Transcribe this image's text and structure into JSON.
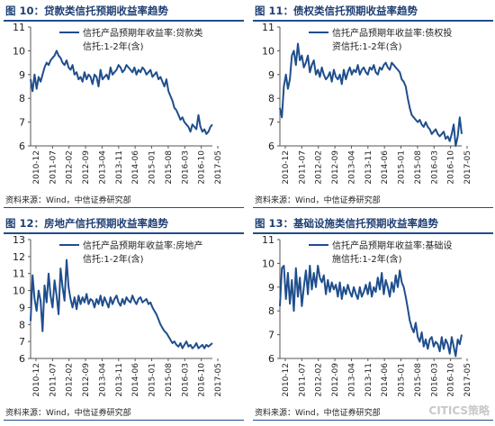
{
  "panels": [
    {
      "title": "图 10：贷款类信托预期收益率趋势",
      "source": "资料来源：Wind，中信证券研究部",
      "watermark": ""
    },
    {
      "title": "图 11：债权类信托预期收益率趋势",
      "source": "资料来源：Wind，中信证券研究部",
      "watermark": ""
    },
    {
      "title": "图 12：房地产信托预期收益率趋势",
      "source": "资料来源：Wind，中信证券研究部",
      "watermark": ""
    },
    {
      "title": "图 13：基础设施类信托预期收益率趋势",
      "source": "资料来源：Wind，中信证券研究部",
      "watermark": "CITICS策略"
    }
  ],
  "colors": {
    "line": "#1f4e8c",
    "header_rule": "#1f4e8c",
    "title": "#1f3f73"
  },
  "chart_data": [
    {
      "type": "line",
      "legend_lines": [
        "信托产品预期年收益率:贷款类",
        "信托:1-2年(含)"
      ],
      "legend_position": "top-right",
      "x_ticks": [
        "2010-12",
        "2011-07",
        "2012-02",
        "2012-09",
        "2013-04",
        "2013-11",
        "2014-06",
        "2015-01",
        "2015-08",
        "2016-03",
        "2016-10",
        "2017-05"
      ],
      "ylim": [
        6,
        11
      ],
      "yticks": [
        6,
        7,
        8,
        9,
        10,
        11
      ],
      "series": [
        {
          "values": [
            8.8,
            8.3,
            9.0,
            8.4,
            8.9,
            8.7,
            9.0,
            9.3,
            9.5,
            9.4,
            9.6,
            9.7,
            9.8,
            10.0,
            9.8,
            9.7,
            9.5,
            9.4,
            9.6,
            9.3,
            9.2,
            9.4,
            9.0,
            9.1,
            8.8,
            8.9,
            8.7,
            9.1,
            8.8,
            9.0,
            8.9,
            8.6,
            9.0,
            8.9,
            8.5,
            9.2,
            8.8,
            8.9,
            9.0,
            8.8,
            9.3,
            9.0,
            9.1,
            9.2,
            9.4,
            9.3,
            9.1,
            9.2,
            9.4,
            9.3,
            9.2,
            9.1,
            9.3,
            9.0,
            9.2,
            9.1,
            9.3,
            9.2,
            9.0,
            9.1,
            9.2,
            8.9,
            9.0,
            9.1,
            8.8,
            8.9,
            8.7,
            8.5,
            8.8,
            8.3,
            8.1,
            7.9,
            7.6,
            7.5,
            7.3,
            7.1,
            7.2,
            7.0,
            6.9,
            6.8,
            6.6,
            6.9,
            6.8,
            6.7,
            7.3,
            6.8,
            6.6,
            6.7,
            6.5,
            6.6,
            6.8,
            6.9
          ]
        }
      ]
    },
    {
      "type": "line",
      "legend_lines": [
        "信托产品预期年收益率:债权投",
        "资信托:1-2年(含)"
      ],
      "legend_position": "top-right",
      "x_ticks": [
        "2010-12",
        "2011-07",
        "2012-02",
        "2012-09",
        "2013-04",
        "2013-11",
        "2014-06",
        "2015-01",
        "2015-08",
        "2016-03",
        "2016-10",
        "2017-05"
      ],
      "ylim": [
        6,
        11
      ],
      "yticks": [
        6,
        7,
        8,
        9,
        10,
        11
      ],
      "series": [
        {
          "values": [
            7.6,
            7.2,
            8.5,
            9.0,
            8.4,
            8.8,
            9.8,
            10.0,
            9.4,
            10.3,
            9.6,
            9.8,
            9.3,
            9.5,
            9.8,
            9.1,
            9.4,
            9.6,
            9.0,
            9.2,
            8.9,
            9.3,
            9.0,
            8.8,
            8.9,
            9.1,
            8.7,
            9.2,
            8.9,
            8.8,
            9.0,
            8.6,
            9.2,
            8.8,
            9.1,
            9.3,
            9.0,
            9.2,
            9.1,
            9.4,
            9.0,
            9.2,
            9.3,
            9.1,
            9.0,
            9.3,
            9.2,
            9.4,
            9.1,
            9.0,
            9.3,
            9.2,
            9.4,
            9.5,
            9.3,
            9.2,
            9.5,
            9.4,
            9.3,
            9.2,
            9.1,
            8.8,
            8.7,
            8.5,
            8.0,
            7.6,
            7.3,
            7.2,
            7.1,
            7.0,
            7.1,
            6.9,
            6.8,
            7.0,
            6.8,
            6.7,
            6.5,
            6.6,
            6.7,
            6.5,
            6.4,
            6.5,
            6.6,
            6.3,
            6.4,
            6.2,
            6.5,
            6.9,
            6.0,
            6.4,
            7.2,
            6.5
          ]
        }
      ]
    },
    {
      "type": "line",
      "legend_lines": [
        "信托产品预期年收益率:房地产",
        "信托:1-2年(含)"
      ],
      "legend_position": "top-right",
      "x_ticks": [
        "2010-12",
        "2011-07",
        "2012-02",
        "2012-09",
        "2013-04",
        "2013-11",
        "2014-06",
        "2015-01",
        "2015-08",
        "2016-03",
        "2016-10",
        "2017-05"
      ],
      "ylim": [
        6,
        13
      ],
      "yticks": [
        6,
        7,
        8,
        9,
        10,
        11,
        12,
        13
      ],
      "series": [
        {
          "values": [
            8.2,
            10.9,
            9.5,
            8.8,
            10.0,
            9.4,
            7.6,
            10.3,
            9.3,
            11.0,
            9.7,
            9.0,
            10.6,
            9.7,
            8.6,
            11.3,
            10.2,
            9.4,
            11.8,
            10.2,
            9.5,
            9.0,
            9.6,
            8.9,
            9.7,
            9.2,
            9.6,
            9.3,
            9.8,
            9.2,
            9.5,
            9.4,
            9.0,
            9.5,
            9.2,
            9.7,
            9.1,
            9.6,
            9.3,
            9.0,
            9.6,
            9.2,
            9.5,
            9.7,
            9.3,
            9.1,
            9.5,
            9.2,
            9.6,
            9.4,
            9.3,
            9.7,
            9.4,
            9.2,
            9.5,
            9.6,
            9.3,
            9.4,
            9.5,
            9.2,
            9.3,
            9.0,
            8.8,
            8.6,
            8.3,
            8.0,
            7.8,
            7.6,
            7.5,
            7.3,
            7.1,
            6.9,
            7.0,
            6.8,
            6.7,
            6.9,
            6.6,
            6.8,
            7.0,
            6.7,
            6.8,
            6.6,
            6.7,
            6.9,
            6.6,
            6.7,
            6.8,
            6.6,
            6.8,
            6.7,
            6.8,
            6.9
          ]
        }
      ]
    },
    {
      "type": "line",
      "legend_lines": [
        "信托产品预期年收益率:基础设",
        "施信托:1-2年(含)"
      ],
      "legend_position": "top-right",
      "x_ticks": [
        "2010-12",
        "2011-07",
        "2012-02",
        "2012-09",
        "2013-04",
        "2013-11",
        "2014-06",
        "2015-01",
        "2015-08",
        "2016-03",
        "2016-10",
        "2017-05"
      ],
      "ylim": [
        6,
        11
      ],
      "yticks": [
        6,
        7,
        8,
        9,
        10,
        11
      ],
      "series": [
        {
          "values": [
            8.2,
            9.8,
            9.9,
            8.5,
            9.6,
            8.3,
            9.3,
            8.0,
            9.8,
            8.6,
            9.4,
            8.2,
            9.0,
            9.7,
            8.7,
            9.9,
            8.9,
            9.6,
            9.0,
            9.9,
            9.4,
            9.2,
            9.5,
            8.7,
            9.3,
            8.8,
            9.2,
            8.9,
            9.1,
            8.6,
            9.2,
            8.5,
            9.0,
            8.7,
            9.1,
            8.8,
            8.6,
            9.0,
            8.7,
            8.5,
            9.0,
            8.6,
            8.8,
            9.1,
            8.7,
            9.2,
            8.6,
            9.0,
            8.8,
            9.4,
            8.9,
            9.6,
            8.7,
            9.3,
            9.0,
            8.6,
            9.2,
            8.8,
            9.5,
            9.0,
            9.7,
            9.2,
            9.0,
            8.6,
            8.1,
            7.6,
            7.3,
            7.1,
            7.5,
            6.9,
            6.7,
            7.1,
            6.5,
            6.8,
            6.4,
            6.8,
            6.9,
            6.5,
            6.7,
            6.6,
            6.3,
            6.9,
            6.4,
            6.8,
            6.6,
            6.2,
            6.9,
            6.5,
            6.1,
            6.8,
            6.6,
            7.0
          ]
        }
      ]
    }
  ]
}
